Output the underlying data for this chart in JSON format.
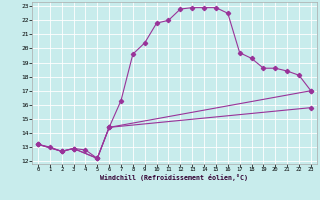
{
  "bg_color": "#c8ecec",
  "line_color": "#993399",
  "xlim": [
    -0.5,
    23.5
  ],
  "ylim": [
    11.8,
    23.3
  ],
  "xticks": [
    0,
    1,
    2,
    3,
    4,
    5,
    6,
    7,
    8,
    9,
    10,
    11,
    12,
    13,
    14,
    15,
    16,
    17,
    18,
    19,
    20,
    21,
    22,
    23
  ],
  "yticks": [
    12,
    13,
    14,
    15,
    16,
    17,
    18,
    19,
    20,
    21,
    22,
    23
  ],
  "xlabel": "Windchill (Refroidissement éolien,°C)",
  "line1_x": [
    0,
    1,
    2,
    3,
    4,
    5,
    6,
    7,
    8,
    9,
    10,
    11,
    12,
    13,
    14,
    15,
    16,
    17,
    18,
    19,
    20,
    21,
    22,
    23
  ],
  "line1_y": [
    13.2,
    13.0,
    12.7,
    12.9,
    12.8,
    12.2,
    14.4,
    16.3,
    19.6,
    20.4,
    21.8,
    22.0,
    22.8,
    22.9,
    22.9,
    22.9,
    22.5,
    19.7,
    19.3,
    18.6,
    18.6,
    18.4,
    18.1,
    17.0
  ],
  "line2_x": [
    0,
    2,
    3,
    5,
    6,
    23
  ],
  "line2_y": [
    13.2,
    12.7,
    12.9,
    12.2,
    14.4,
    17.0
  ],
  "line3_x": [
    0,
    2,
    3,
    5,
    6,
    23
  ],
  "line3_y": [
    13.2,
    12.7,
    12.9,
    12.2,
    14.4,
    15.8
  ]
}
